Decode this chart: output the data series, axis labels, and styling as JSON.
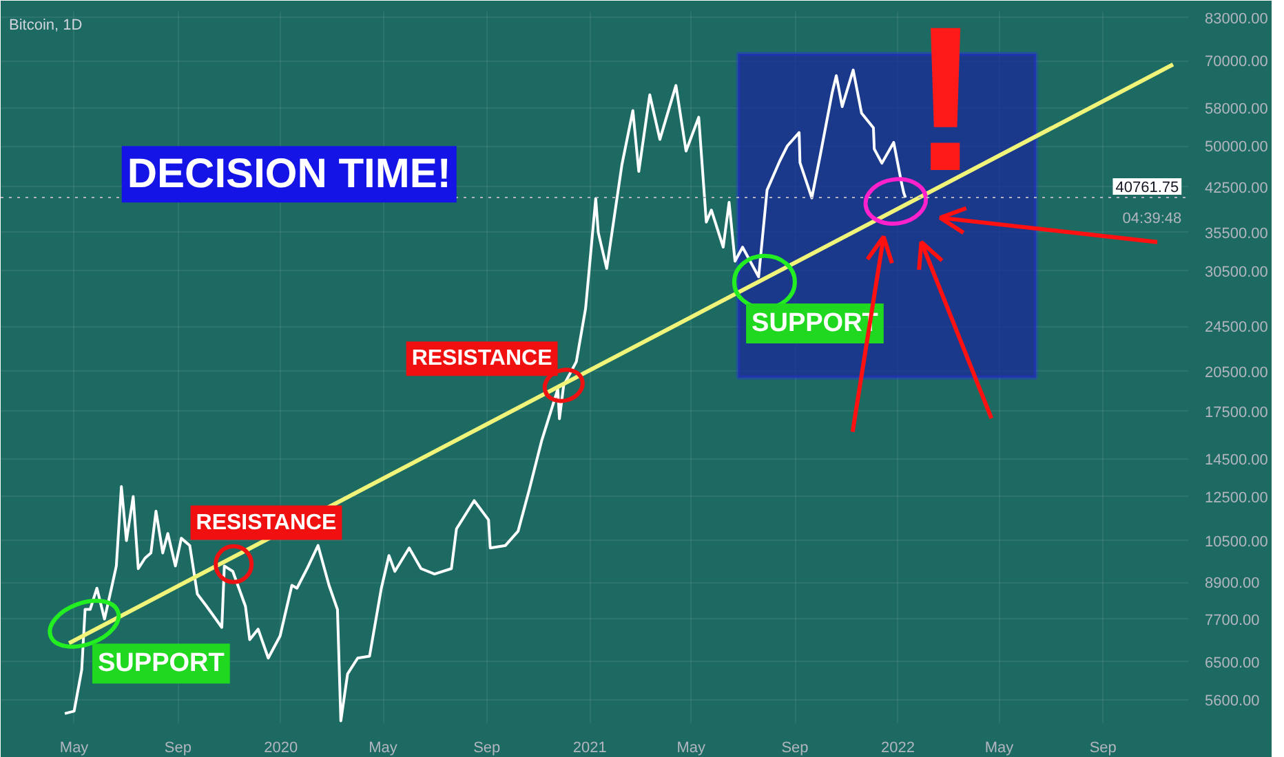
{
  "chart_data": {
    "type": "line",
    "title": "Bitcoin, 1D",
    "x": [
      "2019-04-20",
      "2019-05-01",
      "2019-05-10",
      "2019-05-14",
      "2019-05-20",
      "2019-05-28",
      "2019-06-06",
      "2019-06-15",
      "2019-06-20",
      "2019-06-26",
      "2019-07-02",
      "2019-07-10",
      "2019-07-16",
      "2019-07-24",
      "2019-07-31",
      "2019-08-06",
      "2019-08-14",
      "2019-08-20",
      "2019-08-29",
      "2019-09-05",
      "2019-09-15",
      "2019-09-24",
      "2019-10-05",
      "2019-10-23",
      "2019-10-26",
      "2019-11-05",
      "2019-11-20",
      "2019-11-25",
      "2019-12-05",
      "2019-12-17",
      "2019-12-31",
      "2020-01-14",
      "2020-01-20",
      "2020-02-01",
      "2020-02-14",
      "2020-02-27",
      "2020-03-08",
      "2020-03-12",
      "2020-03-20",
      "2020-04-01",
      "2020-04-15",
      "2020-04-29",
      "2020-05-08",
      "2020-05-15",
      "2020-06-01",
      "2020-06-15",
      "2020-07-01",
      "2020-07-21",
      "2020-07-27",
      "2020-08-17",
      "2020-09-03",
      "2020-09-05",
      "2020-09-23",
      "2020-10-08",
      "2020-10-21",
      "2020-11-05",
      "2020-11-24",
      "2020-11-26",
      "2020-12-01",
      "2020-12-16",
      "2020-12-27",
      "2021-01-08",
      "2021-01-11",
      "2021-01-21",
      "2021-02-08",
      "2021-02-21",
      "2021-02-28",
      "2021-03-13",
      "2021-03-25",
      "2021-04-13",
      "2021-04-25",
      "2021-05-10",
      "2021-05-19",
      "2021-05-25",
      "2021-06-08",
      "2021-06-15",
      "2021-06-22",
      "2021-07-01",
      "2021-07-20",
      "2021-07-30",
      "2021-08-14",
      "2021-08-23",
      "2021-09-06",
      "2021-09-07",
      "2021-09-21",
      "2021-10-01",
      "2021-10-15",
      "2021-10-20",
      "2021-10-27",
      "2021-11-09",
      "2021-11-19",
      "2021-12-03",
      "2021-12-04",
      "2021-12-13",
      "2021-12-27",
      "2022-01-05",
      "2022-01-08",
      "2022-01-10"
    ],
    "series": [
      {
        "color": "#ffffff",
        "values": [
          5300,
          5350,
          6300,
          8000,
          8000,
          8700,
          7700,
          8800,
          9500,
          13000,
          10500,
          12500,
          9400,
          9800,
          10000,
          11800,
          10000,
          10800,
          9500,
          10600,
          10300,
          8500,
          8100,
          7450,
          9500,
          9300,
          8100,
          7100,
          7400,
          6600,
          7200,
          8800,
          8700,
          9400,
          10300,
          8800,
          8000,
          5150,
          6200,
          6600,
          6650,
          8700,
          9900,
          9300,
          10200,
          9400,
          9200,
          9400,
          11000,
          12300,
          11400,
          10200,
          10300,
          10900,
          12800,
          15600,
          19100,
          17000,
          19400,
          21300,
          26300,
          40600,
          35500,
          30800,
          46400,
          57500,
          45200,
          61200,
          51300,
          63500,
          49000,
          56000,
          37000,
          38800,
          33500,
          40000,
          31700,
          33500,
          29800,
          42000,
          47100,
          50000,
          52700,
          46800,
          40700,
          48200,
          61600,
          66000,
          58400,
          67500,
          56900,
          53700,
          49400,
          46700,
          50700,
          43400,
          41500,
          40761.75
        ]
      },
      {
        "type": "line",
        "color": "#f0f57a",
        "x": [
          "2019-04-25",
          "2022-11-23"
        ],
        "values": [
          7000,
          69000
        ]
      }
    ],
    "xlim": [
      "2019-02-03",
      "2022-12-11"
    ],
    "xticks": [
      {
        "value": "2019-05",
        "label": "May"
      },
      {
        "value": "2019-09",
        "label": "Sep"
      },
      "2020",
      {
        "value": "2020-05",
        "label": "May"
      },
      {
        "value": "2020-09",
        "label": "Sep"
      },
      "2021",
      {
        "value": "2021-05",
        "label": "May"
      },
      {
        "value": "2021-09",
        "label": "Sep"
      },
      "2022",
      {
        "value": "2022-05",
        "label": "May"
      },
      {
        "value": "2022-09",
        "label": "Sep"
      }
    ],
    "ylim": [
      5100,
      85000
    ],
    "yticks": [
      {
        "value": 83000,
        "label": "83000.00"
      },
      {
        "value": 70000,
        "label": "70000.00"
      },
      {
        "value": 58000,
        "label": "58000.00"
      },
      {
        "value": 50000,
        "label": "50000.00"
      },
      {
        "value": 42500,
        "label": "42500.00"
      },
      {
        "value": 35500,
        "label": "35500.00"
      },
      {
        "value": 30500,
        "label": "30500.00"
      },
      {
        "value": 24500,
        "label": "24500.00"
      },
      {
        "value": 20500,
        "label": "20500.00"
      },
      {
        "value": 17500,
        "label": "17500.00"
      },
      {
        "value": 14500,
        "label": "14500.00"
      },
      {
        "value": 12500,
        "label": "12500.00"
      },
      {
        "value": 10500,
        "label": "10500.00"
      },
      {
        "value": 8900,
        "label": "8900.00"
      },
      {
        "value": 7700,
        "label": "7700.00"
      },
      {
        "value": 6500,
        "label": "6500.00"
      },
      {
        "value": 5600,
        "label": "5600.00"
      }
    ],
    "log": "y",
    "grid": true,
    "ref_lines": [
      {
        "axis": "y",
        "value": 40761.75,
        "label": "40761.75",
        "line_style": "dotted",
        "color": "#b2b5be"
      }
    ],
    "annotations": [
      "DECISION TIME!",
      {
        "text": "SUPPORT",
        "x": "2019-05-13",
        "y": 7560
      },
      {
        "text": "RESISTANCE",
        "x": "2019-11-06",
        "y": 9570
      },
      {
        "text": "RESISTANCE",
        "x": "2020-12-01",
        "y": 19400
      },
      {
        "text": "SUPPORT",
        "x": "2021-07-27",
        "y": 29200
      },
      "!",
      "04:39:48"
    ]
  }
}
